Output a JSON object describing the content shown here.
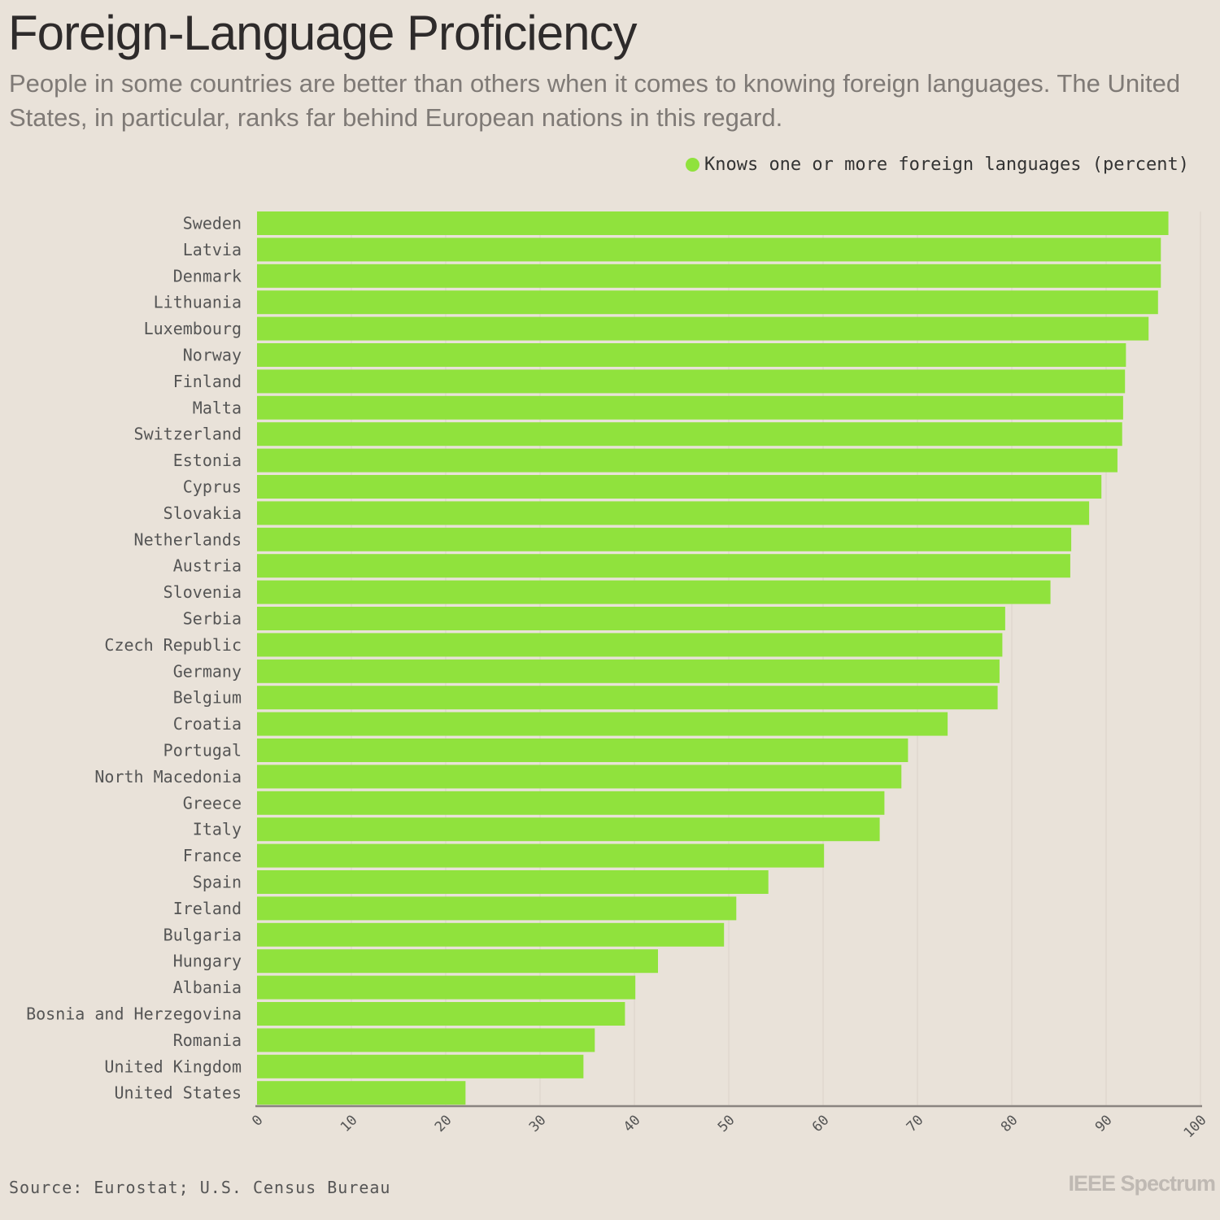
{
  "header": {
    "title": "Foreign-Language Proficiency",
    "subtitle": "People in some countries are better than others when it comes to knowing foreign languages. The United States, in particular, ranks far behind European nations in this regard."
  },
  "legend": {
    "label": "Knows one or more foreign languages (percent)"
  },
  "footer": {
    "source": "Source: Eurostat; U.S. Census Bureau",
    "brand": "IEEE Spectrum"
  },
  "colors": {
    "bar": "#90e23d",
    "background": "#e9e2d9",
    "axis": "#8a8480",
    "grid": "#ddd5cc"
  },
  "chart_data": {
    "type": "bar",
    "orientation": "horizontal",
    "title": "Foreign-Language Proficiency",
    "xlabel": "",
    "ylabel": "",
    "xlim": [
      0,
      100
    ],
    "ticks": [
      0,
      10,
      20,
      30,
      40,
      50,
      60,
      70,
      80,
      90,
      100
    ],
    "tick_labels": [
      "0",
      "10",
      "20",
      "30",
      "40",
      "50",
      "60",
      "70",
      "80",
      "90",
      "100"
    ],
    "grid": true,
    "legend_position": "top-right",
    "series": [
      {
        "name": "Knows one or more foreign languages (percent)"
      }
    ],
    "categories": [
      "Sweden",
      "Latvia",
      "Denmark",
      "Lithuania",
      "Luxembourg",
      "Norway",
      "Finland",
      "Malta",
      "Switzerland",
      "Estonia",
      "Cyprus",
      "Slovakia",
      "Netherlands",
      "Austria",
      "Slovenia",
      "Serbia",
      "Czech Republic",
      "Germany",
      "Belgium",
      "Croatia",
      "Portugal",
      "North Macedonia",
      "Greece",
      "Italy",
      "France",
      "Spain",
      "Ireland",
      "Bulgaria",
      "Hungary",
      "Albania",
      "Bosnia and Herzegovina",
      "Romania",
      "United Kingdom",
      "United States"
    ],
    "values": [
      96.6,
      95.8,
      95.8,
      95.5,
      94.5,
      92.1,
      92.0,
      91.8,
      91.7,
      91.2,
      89.5,
      88.2,
      86.3,
      86.2,
      84.1,
      79.3,
      79.0,
      78.7,
      78.5,
      73.2,
      69.0,
      68.3,
      66.5,
      66.0,
      60.1,
      54.2,
      50.8,
      49.5,
      42.5,
      40.1,
      39.0,
      35.8,
      34.6,
      22.1
    ]
  }
}
